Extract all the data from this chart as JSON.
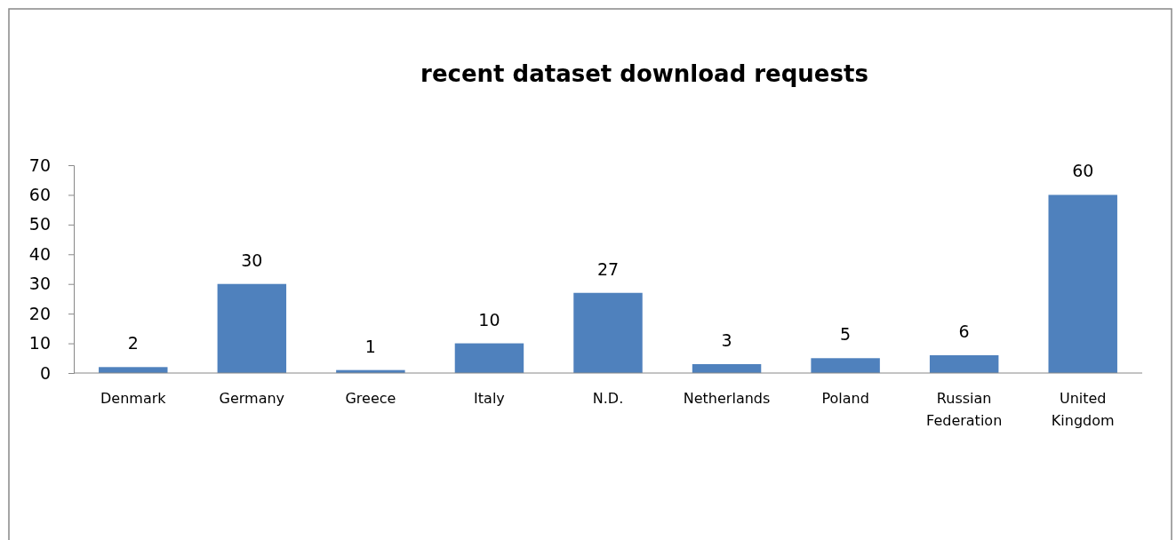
{
  "chart_data": {
    "type": "bar",
    "title": "recent dataset download requests",
    "categories": [
      "Denmark",
      "Germany",
      "Greece",
      "Italy",
      "N.D.",
      "Netherlands",
      "Poland",
      "Russian Federation",
      "United Kingdom"
    ],
    "values": [
      2,
      30,
      1,
      10,
      27,
      3,
      5,
      6,
      60
    ],
    "color": "#4f81bd",
    "ylim": [
      0,
      70
    ],
    "yticks": [
      0,
      10,
      20,
      30,
      40,
      50,
      60,
      70
    ],
    "grid": false,
    "data_labels": true
  }
}
